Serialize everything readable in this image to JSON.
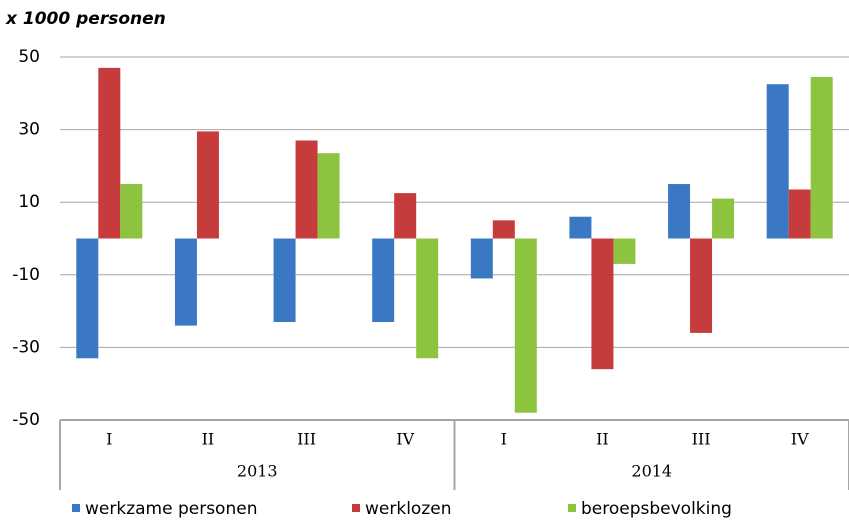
{
  "chart_data": {
    "type": "bar",
    "title": "x 1000 personen",
    "categories": [
      "I",
      "II",
      "III",
      "IV",
      "I",
      "II",
      "III",
      "IV"
    ],
    "years": [
      "2013",
      "2014"
    ],
    "series": [
      {
        "name": "werkzame personen",
        "color": "#3b78c3",
        "values": [
          -33,
          -24,
          -23,
          -23,
          -11,
          6,
          15,
          42.5
        ]
      },
      {
        "name": "werklozen",
        "color": "#c63b3b",
        "values": [
          47,
          29.5,
          27,
          12.5,
          5,
          -36,
          -26,
          13.5
        ]
      },
      {
        "name": "beroepsbevolking",
        "color": "#8cc440",
        "values": [
          15,
          0,
          23.5,
          -33,
          -48,
          -7,
          11,
          44.5
        ]
      }
    ],
    "ylim": [
      -50,
      50
    ],
    "yticks": [
      -50,
      -30,
      -10,
      10,
      30,
      50
    ],
    "grid": true
  }
}
